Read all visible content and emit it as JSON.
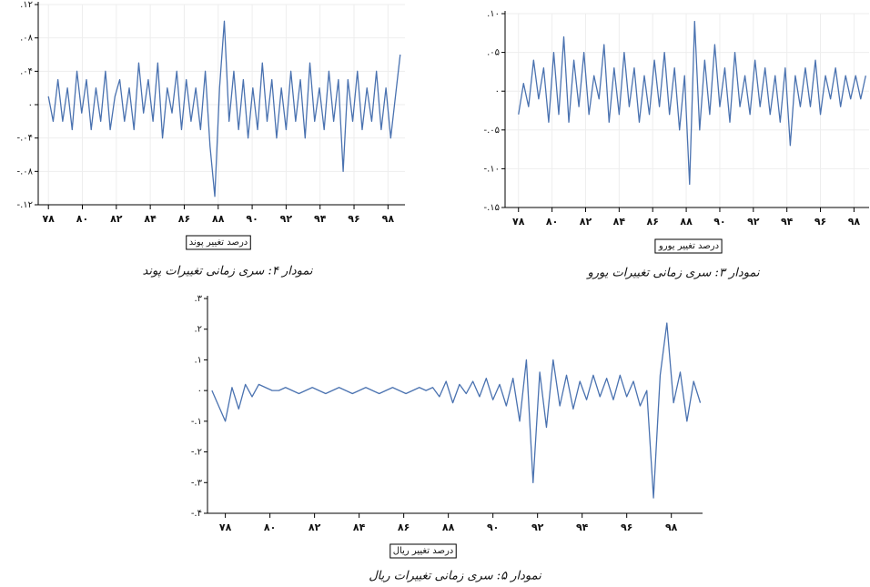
{
  "chart_data": [
    {
      "type": "line",
      "xlabel": "درصد تغییر پوند",
      "caption": "نمودار ۴: سری زمانی تغییرات پوند",
      "color": "#4a72b0",
      "grid": true,
      "xlim": [
        77.4,
        99.0
      ],
      "ylim": [
        -0.12,
        0.12
      ],
      "xticks": [
        {
          "value": 78,
          "label": "۷۸"
        },
        {
          "value": 80,
          "label": "۸۰"
        },
        {
          "value": 82,
          "label": "۸۲"
        },
        {
          "value": 84,
          "label": "۸۴"
        },
        {
          "value": 86,
          "label": "۸۶"
        },
        {
          "value": 88,
          "label": "۸۸"
        },
        {
          "value": 90,
          "label": "۹۰"
        },
        {
          "value": 92,
          "label": "۹۲"
        },
        {
          "value": 94,
          "label": "۹۴"
        },
        {
          "value": 96,
          "label": "۹۶"
        },
        {
          "value": 98,
          "label": "۹۸"
        }
      ],
      "yticks": [
        {
          "value": 0.12,
          "label": ".۱۲"
        },
        {
          "value": 0.08,
          "label": ".۰۸"
        },
        {
          "value": 0.04,
          "label": ".۰۴"
        },
        {
          "value": 0,
          "label": "۰"
        },
        {
          "value": -0.04,
          "label": "-.۰۴"
        },
        {
          "value": -0.08,
          "label": "-.۰۸"
        },
        {
          "value": -0.12,
          "label": "-.۱۲"
        }
      ],
      "x": [
        78,
        78.28,
        78.56,
        78.84,
        79.12,
        79.4,
        79.68,
        79.96,
        80.24,
        80.52,
        80.8,
        81.08,
        81.36,
        81.64,
        81.92,
        82.2,
        82.48,
        82.76,
        83.04,
        83.32,
        83.6,
        83.88,
        84.16,
        84.44,
        84.72,
        85,
        85.28,
        85.56,
        85.84,
        86.12,
        86.4,
        86.68,
        86.96,
        87.24,
        87.52,
        87.8,
        88.08,
        88.36,
        88.64,
        88.92,
        89.2,
        89.48,
        89.76,
        90.04,
        90.32,
        90.6,
        90.88,
        91.16,
        91.44,
        91.72,
        92,
        92.28,
        92.56,
        92.84,
        93.12,
        93.4,
        93.68,
        93.96,
        94.24,
        94.52,
        94.8,
        95.08,
        95.36,
        95.64,
        95.92,
        96.2,
        96.48,
        96.76,
        97.04,
        97.32,
        97.6,
        97.88,
        98.16,
        98.44,
        98.72
      ],
      "values": [
        0.01,
        -0.02,
        0.03,
        -0.02,
        0.02,
        -0.03,
        0.04,
        -0.01,
        0.03,
        -0.03,
        0.02,
        -0.02,
        0.04,
        -0.03,
        0.01,
        0.03,
        -0.02,
        0.02,
        -0.03,
        0.05,
        -0.01,
        0.03,
        -0.02,
        0.05,
        -0.04,
        0.02,
        -0.01,
        0.04,
        -0.03,
        0.03,
        -0.02,
        0.02,
        -0.03,
        0.04,
        -0.05,
        -0.11,
        0.02,
        0.1,
        -0.02,
        0.04,
        -0.03,
        0.03,
        -0.04,
        0.02,
        -0.03,
        0.05,
        -0.02,
        0.03,
        -0.04,
        0.02,
        -0.03,
        0.04,
        -0.02,
        0.03,
        -0.04,
        0.05,
        -0.02,
        0.02,
        -0.03,
        0.04,
        -0.02,
        0.03,
        -0.08,
        0.03,
        -0.02,
        0.04,
        -0.03,
        0.02,
        -0.02,
        0.04,
        -0.03,
        0.02,
        -0.04,
        0.01,
        0.06
      ]
    },
    {
      "type": "line",
      "xlabel": "درصد تغییر یورو",
      "caption": "نمودار ۳: سری زمانی تغییرات یورو",
      "color": "#4a72b0",
      "grid": true,
      "xlim": [
        77.2,
        98.9
      ],
      "ylim": [
        -0.15,
        0.1
      ],
      "xticks": [
        {
          "value": 78,
          "label": "۷۸"
        },
        {
          "value": 80,
          "label": "۸۰"
        },
        {
          "value": 82,
          "label": "۸۲"
        },
        {
          "value": 84,
          "label": "۸۴"
        },
        {
          "value": 86,
          "label": "۸۶"
        },
        {
          "value": 88,
          "label": "۸۸"
        },
        {
          "value": 90,
          "label": "۹۰"
        },
        {
          "value": 92,
          "label": "۹۲"
        },
        {
          "value": 94,
          "label": "۹۴"
        },
        {
          "value": 96,
          "label": "۹۶"
        },
        {
          "value": 98,
          "label": "۹۸"
        }
      ],
      "yticks": [
        {
          "value": 0.1,
          "label": ".۱۰"
        },
        {
          "value": 0.05,
          "label": ".۰۵"
        },
        {
          "value": 0,
          "label": "۰"
        },
        {
          "value": -0.05,
          "label": "-.۰۵"
        },
        {
          "value": -0.1,
          "label": "-.۱۰"
        },
        {
          "value": -0.15,
          "label": "-.۱۵"
        }
      ],
      "x": [
        78,
        78.3,
        78.6,
        78.9,
        79.2,
        79.5,
        79.8,
        80.1,
        80.4,
        80.7,
        81,
        81.3,
        81.6,
        81.9,
        82.2,
        82.5,
        82.8,
        83.1,
        83.4,
        83.7,
        84,
        84.3,
        84.6,
        84.9,
        85.2,
        85.5,
        85.8,
        86.1,
        86.4,
        86.7,
        87,
        87.3,
        87.6,
        87.9,
        88.2,
        88.5,
        88.8,
        89.1,
        89.4,
        89.7,
        90,
        90.3,
        90.6,
        90.9,
        91.2,
        91.5,
        91.8,
        92.1,
        92.4,
        92.7,
        93,
        93.3,
        93.6,
        93.9,
        94.2,
        94.5,
        94.8,
        95.1,
        95.4,
        95.7,
        96,
        96.3,
        96.6,
        96.9,
        97.2,
        97.5,
        97.8,
        98.1,
        98.4,
        98.7
      ],
      "values": [
        -0.03,
        0.01,
        -0.02,
        0.04,
        -0.01,
        0.03,
        -0.04,
        0.05,
        -0.03,
        0.07,
        -0.04,
        0.04,
        -0.02,
        0.05,
        -0.03,
        0.02,
        -0.01,
        0.06,
        -0.04,
        0.03,
        -0.03,
        0.05,
        -0.02,
        0.03,
        -0.04,
        0.02,
        -0.03,
        0.04,
        -0.02,
        0.05,
        -0.03,
        0.03,
        -0.05,
        0.02,
        -0.12,
        0.09,
        -0.05,
        0.04,
        -0.03,
        0.06,
        -0.02,
        0.03,
        -0.04,
        0.05,
        -0.02,
        0.02,
        -0.03,
        0.04,
        -0.02,
        0.03,
        -0.03,
        0.02,
        -0.04,
        0.03,
        -0.07,
        0.02,
        -0.02,
        0.03,
        -0.02,
        0.04,
        -0.03,
        0.02,
        -0.01,
        0.03,
        -0.02,
        0.02,
        -0.01,
        0.02,
        -0.01,
        0.02
      ]
    },
    {
      "type": "line",
      "xlabel": "درصد تغییر ریال",
      "caption": "نمودار ۵: سری زمانی تغییرات ریال",
      "color": "#4a72b0",
      "grid": false,
      "xlim": [
        77.2,
        99.4
      ],
      "ylim": [
        -0.4,
        0.3
      ],
      "xticks": [
        {
          "value": 78,
          "label": "۷۸"
        },
        {
          "value": 80,
          "label": "۸۰"
        },
        {
          "value": 82,
          "label": "۸۲"
        },
        {
          "value": 84,
          "label": "۸۴"
        },
        {
          "value": 86,
          "label": "۸۶"
        },
        {
          "value": 88,
          "label": "۸۸"
        },
        {
          "value": 90,
          "label": "۹۰"
        },
        {
          "value": 92,
          "label": "۹۲"
        },
        {
          "value": 94,
          "label": "۹۴"
        },
        {
          "value": 96,
          "label": "۹۶"
        },
        {
          "value": 98,
          "label": "۹۸"
        }
      ],
      "yticks": [
        {
          "value": 0.3,
          "label": ".۳"
        },
        {
          "value": 0.2,
          "label": ".۲"
        },
        {
          "value": 0.1,
          "label": ".۱"
        },
        {
          "value": 0,
          "label": "۰"
        },
        {
          "value": -0.1,
          "label": "-.۱"
        },
        {
          "value": -0.2,
          "label": "-.۲"
        },
        {
          "value": -0.3,
          "label": "-.۳"
        },
        {
          "value": -0.4,
          "label": "-.۴"
        }
      ],
      "x": [
        77.4,
        77.7,
        78,
        78.3,
        78.6,
        78.9,
        79.2,
        79.5,
        79.8,
        80.1,
        80.4,
        80.7,
        81,
        81.3,
        81.6,
        81.9,
        82.2,
        82.5,
        82.8,
        83.1,
        83.4,
        83.7,
        84,
        84.3,
        84.6,
        84.9,
        85.2,
        85.5,
        85.8,
        86.1,
        86.4,
        86.7,
        87,
        87.3,
        87.6,
        87.9,
        88.2,
        88.5,
        88.8,
        89.1,
        89.4,
        89.7,
        90,
        90.3,
        90.6,
        90.9,
        91.2,
        91.5,
        91.8,
        92.1,
        92.4,
        92.7,
        93,
        93.3,
        93.6,
        93.9,
        94.2,
        94.5,
        94.8,
        95.1,
        95.4,
        95.7,
        96,
        96.3,
        96.6,
        96.9,
        97.2,
        97.5,
        97.8,
        98.1,
        98.4,
        98.7,
        99,
        99.3
      ],
      "values": [
        0,
        -0.05,
        -0.1,
        0.01,
        -0.06,
        0.02,
        -0.02,
        0.02,
        0.01,
        0,
        0,
        0.01,
        0,
        -0.01,
        0,
        0.01,
        0,
        -0.01,
        0,
        0.01,
        0,
        -0.01,
        0,
        0.01,
        0,
        -0.01,
        0,
        0.01,
        0,
        -0.01,
        0,
        0.01,
        0,
        0.01,
        -0.02,
        0.03,
        -0.04,
        0.02,
        -0.01,
        0.03,
        -0.02,
        0.04,
        -0.03,
        0.02,
        -0.05,
        0.04,
        -0.1,
        0.1,
        -0.3,
        0.06,
        -0.12,
        0.1,
        -0.05,
        0.05,
        -0.06,
        0.03,
        -0.03,
        0.05,
        -0.02,
        0.04,
        -0.03,
        0.05,
        -0.02,
        0.03,
        -0.05,
        0,
        -0.35,
        0.05,
        0.22,
        -0.04,
        0.06,
        -0.1,
        0.03,
        -0.04
      ]
    }
  ]
}
